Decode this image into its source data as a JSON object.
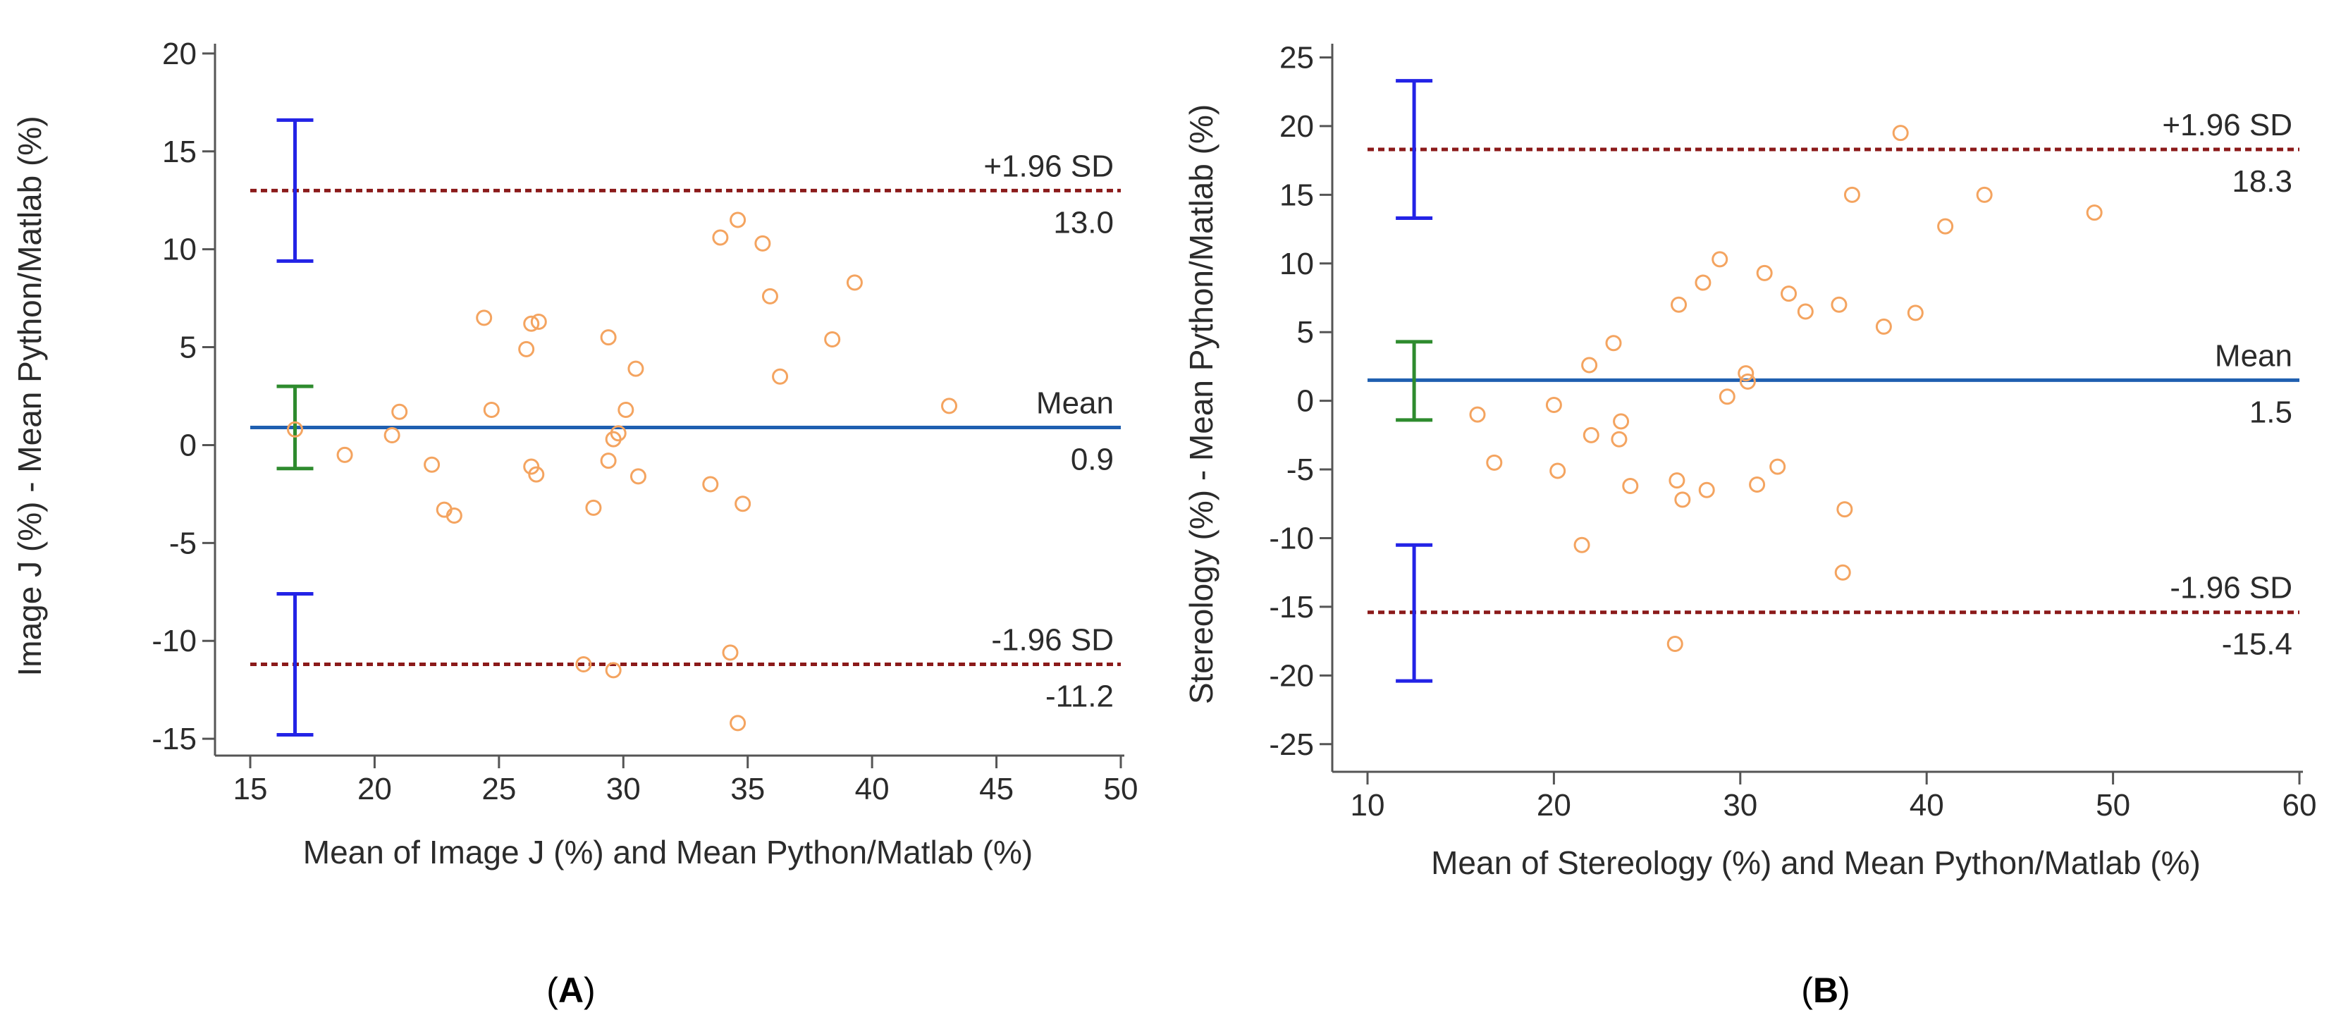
{
  "chart_data": [
    {
      "type": "scatter",
      "panel": "A",
      "panel_label": {
        "open": "(",
        "letter": "A",
        "close": ")"
      },
      "xlabel": "Mean of Image J (%) and Mean Python/Matlab (%)",
      "ylabel": "Image J (%) - Mean Python/Matlab (%)",
      "xlim": [
        15,
        50
      ],
      "ylim": [
        -15.5,
        20.5
      ],
      "xticks": [
        15,
        20,
        25,
        30,
        35,
        40,
        45,
        50
      ],
      "yticks": [
        -15,
        -10,
        -5,
        0,
        5,
        10,
        15,
        20
      ],
      "reference_lines": [
        {
          "name": "mean",
          "value": 0.9,
          "label": "Mean",
          "value_label": "0.9",
          "style": "solid",
          "color": "#1f5fb0"
        },
        {
          "name": "upper-loa",
          "value": 13.0,
          "label": "+1.96 SD",
          "value_label": "13.0",
          "style": "dashed",
          "color": "#8b1a1a"
        },
        {
          "name": "lower-loa",
          "value": -11.2,
          "label": "-1.96 SD",
          "value_label": "-11.2",
          "style": "dashed",
          "color": "#8b1a1a"
        }
      ],
      "ci_bars": [
        {
          "name": "upper-loa-ci",
          "x": 16.8,
          "low": 9.4,
          "high": 16.6,
          "color": "#2323e6"
        },
        {
          "name": "mean-ci",
          "x": 16.8,
          "low": -1.2,
          "high": 3.0,
          "color": "#2e8b2e"
        },
        {
          "name": "lower-loa-ci",
          "x": 16.8,
          "low": -14.8,
          "high": -7.6,
          "color": "#2323e6"
        }
      ],
      "points": [
        [
          16.8,
          0.8
        ],
        [
          18.8,
          -0.5
        ],
        [
          20.7,
          0.5
        ],
        [
          21.0,
          1.7
        ],
        [
          22.3,
          -1.0
        ],
        [
          22.8,
          -3.3
        ],
        [
          23.2,
          -3.6
        ],
        [
          24.4,
          6.5
        ],
        [
          24.7,
          1.8
        ],
        [
          26.1,
          4.9
        ],
        [
          26.3,
          6.2
        ],
        [
          26.6,
          6.3
        ],
        [
          26.3,
          -1.1
        ],
        [
          26.5,
          -1.5
        ],
        [
          28.4,
          -11.2
        ],
        [
          28.8,
          -3.2
        ],
        [
          29.4,
          5.5
        ],
        [
          29.4,
          -0.8
        ],
        [
          29.6,
          0.3
        ],
        [
          29.8,
          0.6
        ],
        [
          30.1,
          1.8
        ],
        [
          30.5,
          3.9
        ],
        [
          30.6,
          -1.6
        ],
        [
          29.6,
          -11.5
        ],
        [
          33.5,
          -2.0
        ],
        [
          33.9,
          10.6
        ],
        [
          34.3,
          -10.6
        ],
        [
          34.6,
          11.5
        ],
        [
          34.8,
          -3.0
        ],
        [
          34.6,
          -14.2
        ],
        [
          35.6,
          10.3
        ],
        [
          35.9,
          7.6
        ],
        [
          36.3,
          3.5
        ],
        [
          38.4,
          5.4
        ],
        [
          39.3,
          8.3
        ],
        [
          43.1,
          2.0
        ]
      ]
    },
    {
      "type": "scatter",
      "panel": "B",
      "panel_label": {
        "open": "(",
        "letter": "B",
        "close": ")"
      },
      "xlabel": "Mean of Stereology (%) and Mean Python/Matlab (%)",
      "ylabel": "Stereology (%) - Mean Python/Matlab (%)",
      "xlim": [
        10,
        60
      ],
      "ylim": [
        -26.5,
        26
      ],
      "xticks": [
        10,
        20,
        30,
        40,
        50,
        60
      ],
      "yticks": [
        -25,
        -20,
        -15,
        -10,
        -5,
        0,
        5,
        10,
        15,
        20,
        25
      ],
      "reference_lines": [
        {
          "name": "mean",
          "value": 1.5,
          "label": "Mean",
          "value_label": "1.5",
          "style": "solid",
          "color": "#1f5fb0"
        },
        {
          "name": "upper-loa",
          "value": 18.3,
          "label": "+1.96 SD",
          "value_label": "18.3",
          "style": "dashed",
          "color": "#8b1a1a"
        },
        {
          "name": "lower-loa",
          "value": -15.4,
          "label": "-1.96 SD",
          "value_label": "-15.4",
          "style": "dashed",
          "color": "#8b1a1a"
        }
      ],
      "ci_bars": [
        {
          "name": "upper-loa-ci",
          "x": 12.5,
          "low": 13.3,
          "high": 23.3,
          "color": "#2323e6"
        },
        {
          "name": "mean-ci",
          "x": 12.5,
          "low": -1.4,
          "high": 4.3,
          "color": "#2e8b2e"
        },
        {
          "name": "lower-loa-ci",
          "x": 12.5,
          "low": -20.4,
          "high": -10.5,
          "color": "#2323e6"
        }
      ],
      "points": [
        [
          15.9,
          -1.0
        ],
        [
          16.8,
          -4.5
        ],
        [
          20.0,
          -0.3
        ],
        [
          20.2,
          -5.1
        ],
        [
          21.5,
          -10.5
        ],
        [
          21.9,
          2.6
        ],
        [
          22.0,
          -2.5
        ],
        [
          23.2,
          4.2
        ],
        [
          23.5,
          -2.8
        ],
        [
          23.6,
          -1.5
        ],
        [
          24.1,
          -6.2
        ],
        [
          26.5,
          -17.7
        ],
        [
          26.6,
          -5.8
        ],
        [
          26.7,
          7.0
        ],
        [
          26.9,
          -7.2
        ],
        [
          28.0,
          8.6
        ],
        [
          28.2,
          -6.5
        ],
        [
          28.9,
          10.3
        ],
        [
          29.3,
          0.3
        ],
        [
          30.3,
          2.0
        ],
        [
          30.4,
          1.4
        ],
        [
          30.9,
          -6.1
        ],
        [
          31.3,
          9.3
        ],
        [
          32.0,
          -4.8
        ],
        [
          32.6,
          7.8
        ],
        [
          33.5,
          6.5
        ],
        [
          35.3,
          7.0
        ],
        [
          35.5,
          -12.5
        ],
        [
          35.6,
          -7.9
        ],
        [
          36.0,
          15.0
        ],
        [
          37.7,
          5.4
        ],
        [
          38.6,
          19.5
        ],
        [
          39.4,
          6.4
        ],
        [
          41.0,
          12.7
        ],
        [
          43.1,
          15.0
        ],
        [
          49.0,
          13.7
        ]
      ]
    }
  ]
}
